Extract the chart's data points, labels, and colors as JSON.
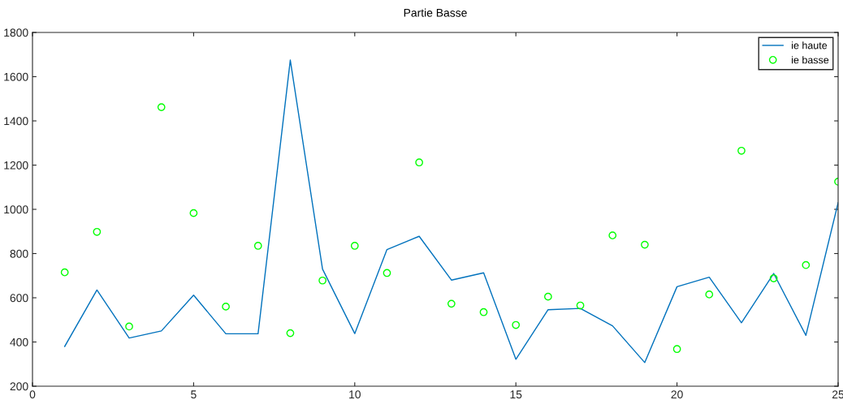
{
  "chart_data": {
    "type": "line",
    "title": "Partie Basse",
    "x": [
      1,
      2,
      3,
      4,
      5,
      6,
      7,
      8,
      9,
      10,
      11,
      12,
      13,
      14,
      15,
      16,
      17,
      18,
      19,
      20,
      21,
      22,
      23,
      24,
      25
    ],
    "series": [
      {
        "name": "ie haute",
        "color": "#0072bd",
        "marker": "none",
        "line_style": "solid",
        "values": [
          380,
          635,
          418,
          450,
          612,
          437,
          437,
          1675,
          730,
          438,
          818,
          878,
          680,
          713,
          322,
          546,
          552,
          473,
          307,
          650,
          693,
          487,
          710,
          430,
          1030
        ]
      },
      {
        "name": "ie basse",
        "type": "scatter",
        "color": "#00ff00",
        "marker": "circle",
        "values": [
          715,
          898,
          470,
          1462,
          983,
          560,
          835,
          440,
          678,
          835,
          712,
          1212,
          573,
          535,
          477,
          605,
          565,
          882,
          840,
          368,
          615,
          1265,
          688,
          748,
          1125
        ]
      }
    ],
    "xlim": [
      0,
      25
    ],
    "xticks": [
      0,
      5,
      10,
      15,
      20,
      25
    ],
    "ylim": [
      200,
      1800
    ],
    "yticks": [
      200,
      400,
      600,
      800,
      1000,
      1200,
      1400,
      1600,
      1800
    ],
    "grid": false,
    "legend": "top right"
  }
}
